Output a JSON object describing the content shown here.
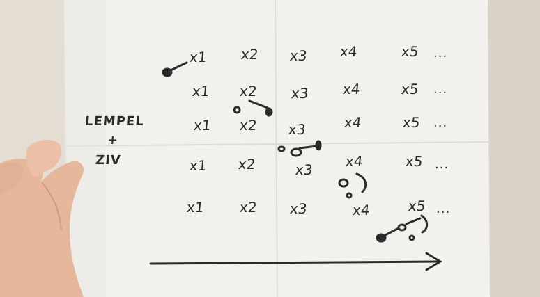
{
  "side_label": [
    "LEMPEL",
    "+",
    "ZIV"
  ],
  "rows": [
    [
      "x1",
      "x2",
      "x3",
      "x4",
      "x5",
      "..."
    ],
    [
      "x1",
      "x2",
      "x3",
      "x4",
      "x5",
      "..."
    ],
    [
      "x1",
      "x2",
      "x3",
      "x4",
      "x5",
      "..."
    ],
    [
      "x1",
      "x2",
      "x3",
      "x4",
      "x5",
      "..."
    ],
    [
      "x1",
      "x2",
      "x3",
      "x4",
      "x5",
      "..."
    ]
  ],
  "colors": {
    "wall": "#e3ddd3",
    "paper": "#f2f1ed",
    "ink": "#2b2b2b",
    "skin": "#e7b79c"
  }
}
